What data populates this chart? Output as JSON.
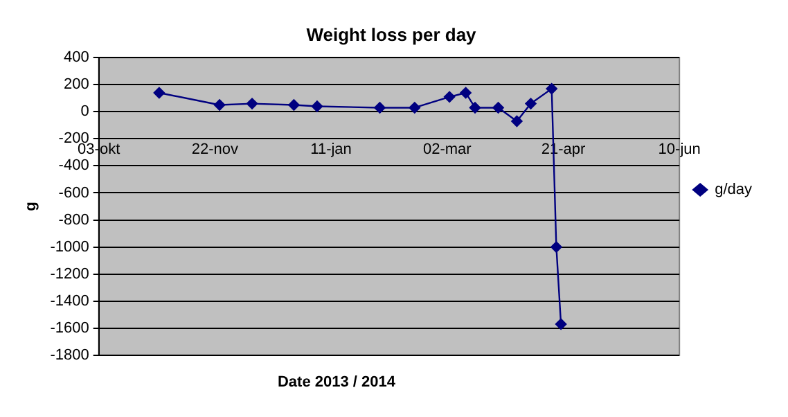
{
  "chart_data": {
    "type": "line",
    "title": "Weight loss per day",
    "xlabel": "Date 2013 / 2014",
    "ylabel": "g",
    "x": [
      "2013-10-29",
      "2013-11-24",
      "2013-12-08",
      "2013-12-26",
      "2014-01-05",
      "2014-02-01",
      "2014-02-16",
      "2014-03-03",
      "2014-03-10",
      "2014-03-14",
      "2014-03-24",
      "2014-04-01",
      "2014-04-07",
      "2014-04-16",
      "2014-04-18",
      "2014-04-20"
    ],
    "series": [
      {
        "name": "g/day",
        "color": "#000080",
        "values": [
          140,
          50,
          60,
          50,
          40,
          30,
          30,
          110,
          140,
          30,
          30,
          -70,
          60,
          170,
          -1000,
          -1570
        ]
      }
    ],
    "xlim": [
      "2013-10-03",
      "2014-06-10"
    ],
    "xticks": [
      {
        "value": "2013-10-03",
        "label": "03-okt"
      },
      {
        "value": "2013-11-22",
        "label": "22-nov"
      },
      {
        "value": "2014-01-11",
        "label": "11-jan"
      },
      {
        "value": "2014-03-02",
        "label": "02-mar"
      },
      {
        "value": "2014-04-21",
        "label": "21-apr"
      },
      {
        "value": "2014-06-10",
        "label": "10-jun"
      }
    ],
    "ylim": [
      -1800,
      400
    ],
    "yticks": [
      -1800,
      -1600,
      -1400,
      -1200,
      -1000,
      -800,
      -600,
      -400,
      -200,
      0,
      200,
      400
    ],
    "grid": "y",
    "legend": "right",
    "marker": "diamond",
    "line_style": "solid"
  }
}
